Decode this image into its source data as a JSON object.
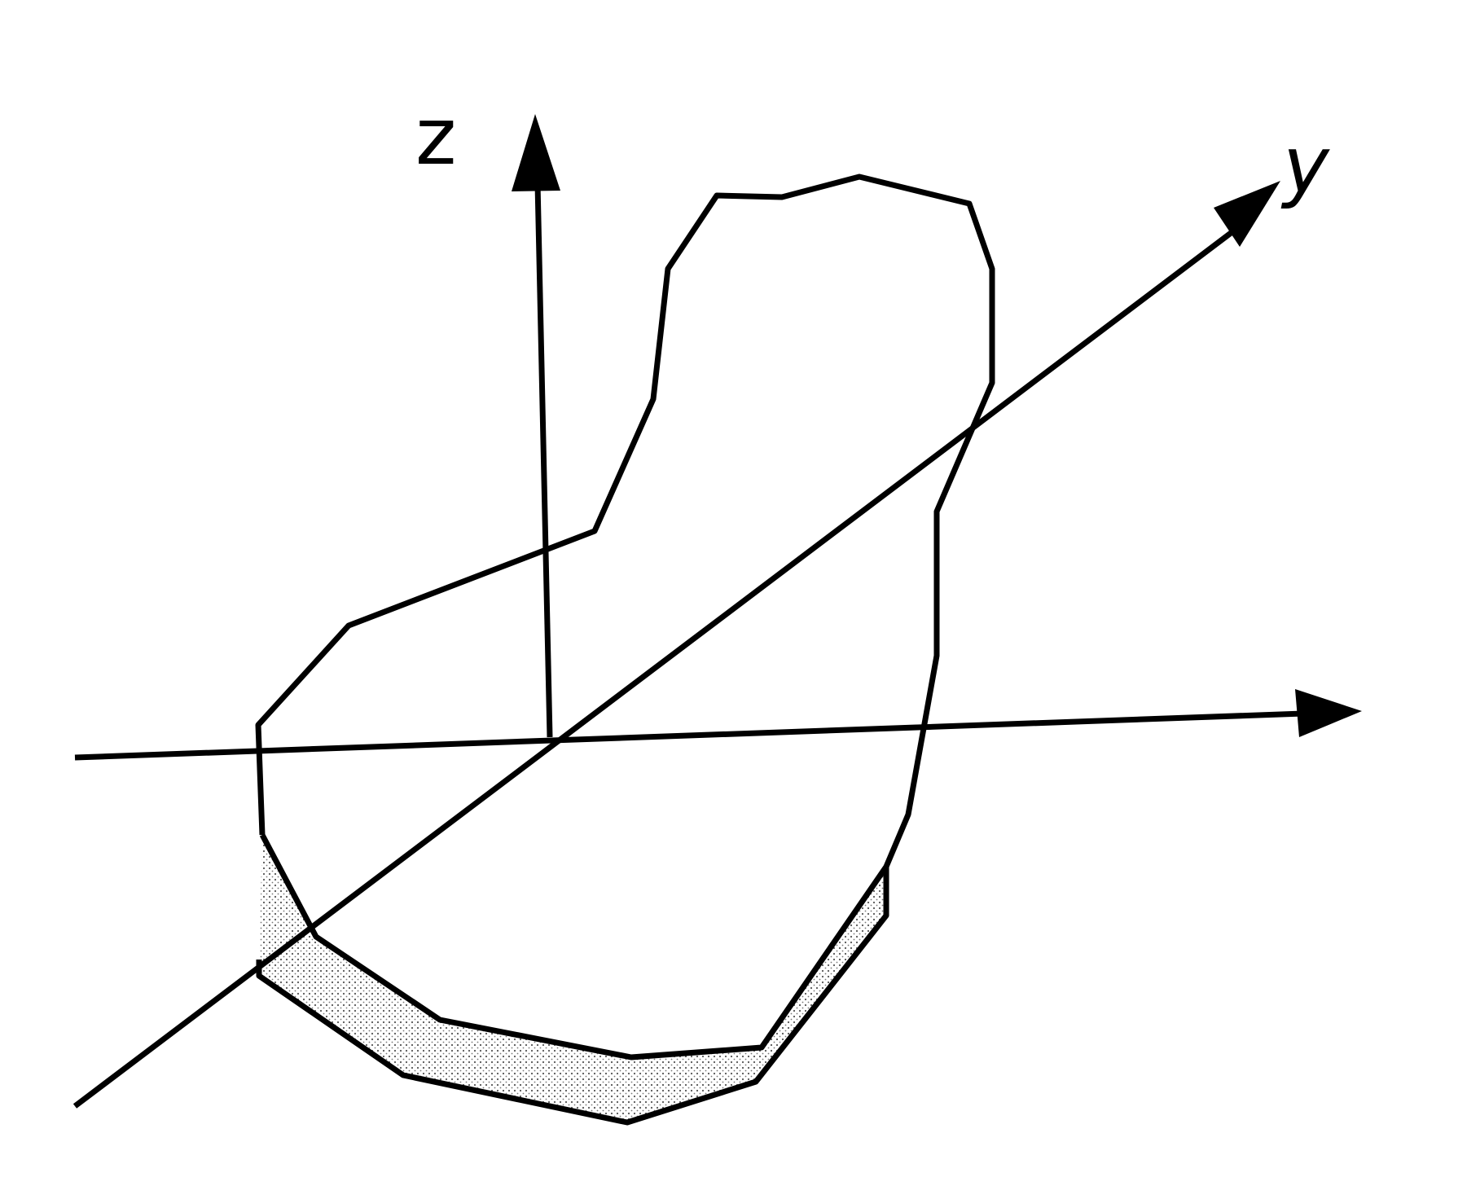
{
  "diagram": {
    "axis_labels": {
      "z": "z",
      "y": "y"
    },
    "colors": {
      "stroke": "#000000",
      "shading": "#d6d6d6",
      "background": "#ffffff"
    }
  }
}
